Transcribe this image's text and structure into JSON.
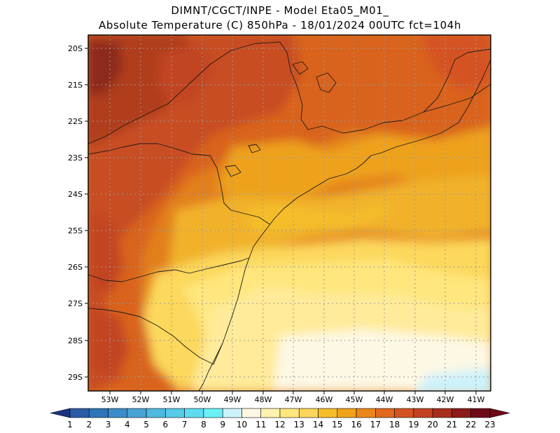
{
  "title": {
    "line1": "DIMNT/CGCT/INPE -  Model Eta05_M01_",
    "line2": "Absolute Temperature (C) 850hPa -  18/01/2024 00UTC fct=104h"
  },
  "axes": {
    "lat_labels": [
      "20S",
      "21S",
      "22S",
      "23S",
      "24S",
      "25S",
      "26S",
      "27S",
      "28S",
      "29S"
    ],
    "lon_labels": [
      "53W",
      "52W",
      "51W",
      "50W",
      "49W",
      "48W",
      "47W",
      "46W",
      "45W",
      "44W",
      "43W",
      "42W",
      "41W"
    ],
    "lat_range": [
      -29.4,
      -19.9
    ],
    "lon_range": [
      -53.8,
      -40.6
    ]
  },
  "colorbar": {
    "labels": [
      "1",
      "2",
      "3",
      "4",
      "5",
      "6",
      "7",
      "8",
      "9",
      "10",
      "11",
      "12",
      "13",
      "14",
      "15",
      "16",
      "17",
      "18",
      "19",
      "20",
      "21",
      "22",
      "23"
    ],
    "colors": [
      "#233f91",
      "#2a5ba6",
      "#2e74b8",
      "#3a8dc8",
      "#4aa3d6",
      "#4fb9e0",
      "#57cbe8",
      "#5fdbef",
      "#6bf0f7",
      "#cdf2fb",
      "#fdf8e4",
      "#fff2ae",
      "#ffe67d",
      "#fbd65a",
      "#f5bd2a",
      "#f1a318",
      "#eb861b",
      "#e0681f",
      "#d55322",
      "#c24222",
      "#a82f1d",
      "#8c1b1a",
      "#6e0a18"
    ],
    "low_color": "#1c3380",
    "high_color": "#6e0a18"
  },
  "legend": {
    "unit": "Absolute Temperature (C)"
  }
}
